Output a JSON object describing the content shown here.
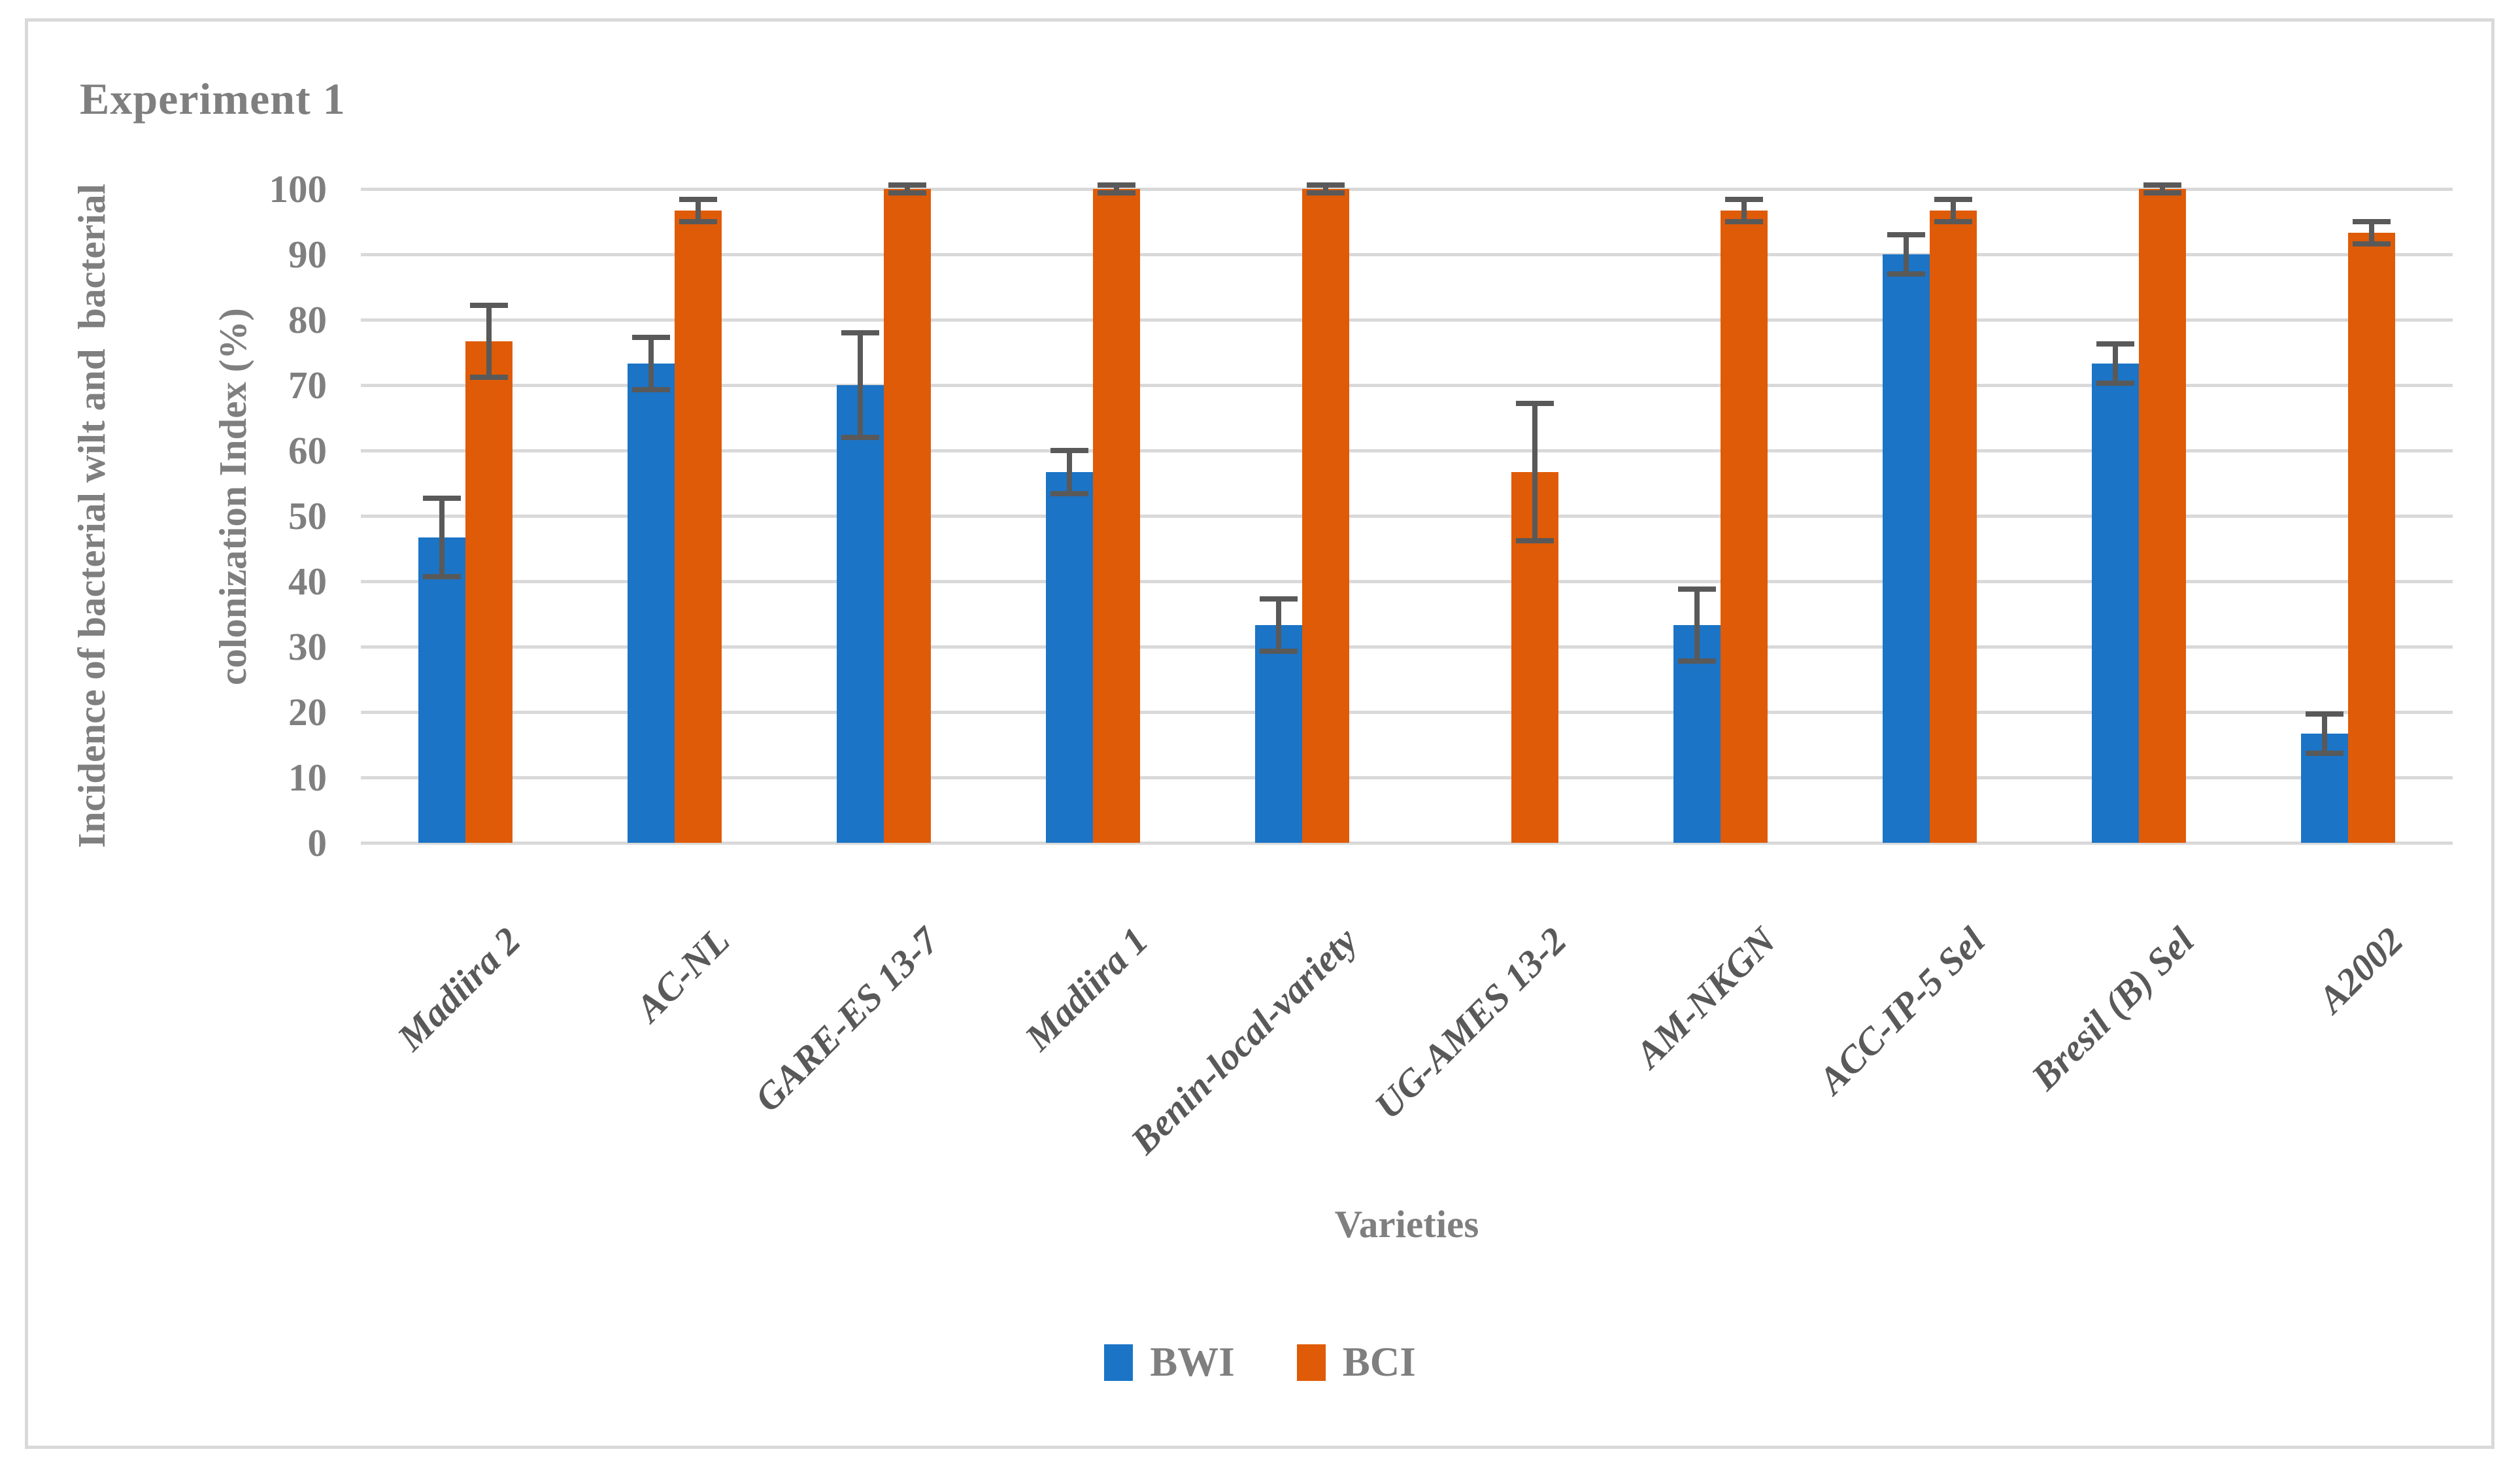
{
  "figure": {
    "title": "Experiment 1",
    "x_axis_title": "Varieties",
    "y_axis_label_line1": "Incidence of bacterial wilt and  bacterial",
    "y_axis_label_line2": "colonization Index (%)"
  },
  "legend": {
    "items": [
      {
        "label": "BWI",
        "color": "#1B74C6"
      },
      {
        "label": "BCI",
        "color": "#DF5B07"
      }
    ]
  },
  "colors": {
    "gridline": "#D9D9D9",
    "error_bar": "#595959",
    "axis_text": "#7F7F7F",
    "category_text": "#595959",
    "bwi_blue": "#1B74C6",
    "bci_orange": "#DF5B07"
  },
  "chart_data": {
    "type": "bar",
    "title": "Experiment 1",
    "xlabel": "Varieties",
    "ylabel": "Incidence of bacterial wilt and bacterial colonization Index (%)",
    "ylim": [
      0,
      100
    ],
    "yticks": [
      0,
      10,
      20,
      30,
      40,
      50,
      60,
      70,
      80,
      90,
      100
    ],
    "grid": true,
    "legend_position": "bottom",
    "error_bars": true,
    "categories": [
      "Madiira 2",
      "AC-NL",
      "GARE-ES 13-7",
      "Madiira 1",
      "Benin-local-variety",
      "UG-AMES 13-2",
      "AM-NKGN",
      "ACC-IP-5 Sel",
      "Bresil (B) Sel",
      "A2002"
    ],
    "series": [
      {
        "name": "BWI",
        "color": "#1B74C6",
        "values": [
          46.67,
          73.33,
          70,
          56.67,
          33.33,
          0,
          33.33,
          90,
          73.33,
          16.67
        ],
        "errors": [
          6,
          4,
          8,
          3.3,
          4,
          null,
          5.5,
          3,
          3,
          3
        ]
      },
      {
        "name": "BCI",
        "color": "#DF5B07",
        "values": [
          76.67,
          96.67,
          100,
          100,
          100,
          56.67,
          96.67,
          96.67,
          100,
          93.33
        ],
        "errors": [
          5.5,
          1.7,
          0.6,
          0.6,
          0.6,
          10.5,
          1.7,
          1.7,
          0.6,
          1.7
        ]
      }
    ]
  }
}
